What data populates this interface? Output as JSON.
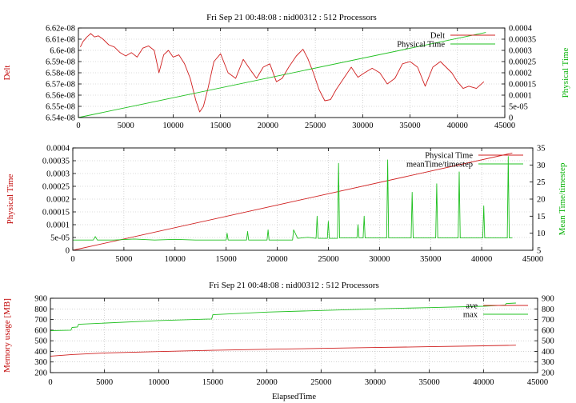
{
  "chart_data": [
    {
      "type": "line",
      "title": "Fri Sep 21 00:48:08 : nid00312 : 512 Processors",
      "ylabel": "Delt",
      "y2label": "Physical Time",
      "xlabel": "",
      "xlim": [
        0,
        45000
      ],
      "ylim": [
        6.54e-08,
        6.62e-08
      ],
      "y2lim": [
        0,
        0.0004
      ],
      "xticks": [
        "0",
        "5000",
        "10000",
        "15000",
        "20000",
        "25000",
        "30000",
        "35000",
        "40000",
        "45000"
      ],
      "yticks": [
        "6.54e-08",
        "6.55e-08",
        "6.56e-08",
        "6.57e-08",
        "6.58e-08",
        "6.59e-08",
        "6.6e-08",
        "6.61e-08",
        "6.62e-08"
      ],
      "y2ticks": [
        "0",
        "5e-05",
        "0.0001",
        "0.00015",
        "0.0002",
        "0.00025",
        "0.0003",
        "0.00035",
        "0.0004"
      ],
      "grid": true,
      "legend_position": "top-right",
      "series": [
        {
          "name": "Delt",
          "axis": "y",
          "color": "#d02020",
          "x": [
            200,
            500,
            900,
            1300,
            1700,
            2100,
            2600,
            3200,
            3800,
            4400,
            5000,
            5600,
            6200,
            6800,
            7400,
            8000,
            8500,
            9000,
            9500,
            10000,
            10600,
            11200,
            11800,
            12400,
            12800,
            13200,
            13700,
            14300,
            15000,
            15800,
            16600,
            17400,
            18200,
            18800,
            19500,
            20200,
            20900,
            21500,
            22200,
            23000,
            23700,
            24200,
            24800,
            25400,
            26000,
            26600,
            27200,
            28000,
            28800,
            29500,
            30200,
            31000,
            31800,
            32600,
            33400,
            34200,
            35000,
            35800,
            36600,
            37400,
            38200,
            38800,
            39400,
            40000,
            40600,
            41200,
            42000,
            42800
          ],
          "y": [
            6.603e-08,
            6.608e-08,
            6.612e-08,
            6.615e-08,
            6.612e-08,
            6.613e-08,
            6.61e-08,
            6.605e-08,
            6.603e-08,
            6.598e-08,
            6.595e-08,
            6.598e-08,
            6.594e-08,
            6.602e-08,
            6.604e-08,
            6.6e-08,
            6.58e-08,
            6.596e-08,
            6.6e-08,
            6.594e-08,
            6.596e-08,
            6.588e-08,
            6.575e-08,
            6.555e-08,
            6.545e-08,
            6.55e-08,
            6.567e-08,
            6.59e-08,
            6.597e-08,
            6.58e-08,
            6.575e-08,
            6.592e-08,
            6.582e-08,
            6.575e-08,
            6.585e-08,
            6.588e-08,
            6.572e-08,
            6.575e-08,
            6.585e-08,
            6.595e-08,
            6.601e-08,
            6.593e-08,
            6.58e-08,
            6.565e-08,
            6.555e-08,
            6.556e-08,
            6.565e-08,
            6.575e-08,
            6.585e-08,
            6.576e-08,
            6.58e-08,
            6.584e-08,
            6.58e-08,
            6.57e-08,
            6.575e-08,
            6.588e-08,
            6.59e-08,
            6.585e-08,
            6.568e-08,
            6.585e-08,
            6.59e-08,
            6.585e-08,
            6.58e-08,
            6.572e-08,
            6.566e-08,
            6.568e-08,
            6.566e-08,
            6.572e-08
          ]
        },
        {
          "name": "Physical Time",
          "axis": "y2",
          "color": "#20c020",
          "x": [
            0,
            43000
          ],
          "y": [
            0,
            0.00038
          ]
        }
      ]
    },
    {
      "type": "line",
      "title": "",
      "ylabel": "Physical Time",
      "y2label": "Mean Time/timestep",
      "xlabel": "",
      "xlim": [
        0,
        45000
      ],
      "ylim": [
        0,
        0.0004
      ],
      "y2lim": [
        5,
        35
      ],
      "xticks": [
        "0",
        "5000",
        "10000",
        "15000",
        "20000",
        "25000",
        "30000",
        "35000",
        "40000",
        "45000"
      ],
      "yticks": [
        "0",
        "5e-05",
        "0.0001",
        "0.00015",
        "0.0002",
        "0.00025",
        "0.0003",
        "0.00035",
        "0.0004"
      ],
      "y2ticks": [
        "5",
        "10",
        "15",
        "20",
        "25",
        "30",
        "35"
      ],
      "grid": true,
      "legend_position": "top-right",
      "series": [
        {
          "name": "Physical Time",
          "axis": "y",
          "color": "#d02020",
          "x": [
            0,
            43000
          ],
          "y": [
            0,
            0.00038
          ]
        },
        {
          "name": "meanTime/timestep",
          "axis": "y2",
          "color": "#20c020",
          "x": [
            0,
            2000,
            2200,
            2400,
            4000,
            6000,
            8000,
            10000,
            12000,
            14000,
            15000,
            15100,
            15200,
            17000,
            17100,
            17200,
            19000,
            19100,
            19200,
            21500,
            21600,
            22000,
            23000,
            23800,
            23900,
            24000,
            24900,
            25000,
            25100,
            25900,
            26000,
            26100,
            27800,
            27900,
            28000,
            28400,
            28500,
            28600,
            30700,
            30800,
            30900,
            33100,
            33200,
            33300,
            35500,
            35600,
            35700,
            37700,
            37800,
            37900,
            40100,
            40200,
            40300,
            42500,
            42600,
            42700,
            43000
          ],
          "y": [
            8,
            8,
            9,
            8,
            8,
            8.3,
            8,
            8.2,
            8,
            8,
            8,
            10,
            8,
            8,
            10.5,
            8,
            8,
            11,
            8,
            8,
            11,
            8.5,
            8.8,
            8.5,
            15,
            8.5,
            8.5,
            13.5,
            8.5,
            8.5,
            30.5,
            8.6,
            8.6,
            12.5,
            8.6,
            8.6,
            15,
            8.6,
            8.6,
            31.5,
            8.6,
            8.6,
            22,
            8.6,
            8.6,
            24.5,
            8.6,
            8.6,
            28,
            8.6,
            8.6,
            18,
            8.6,
            8.6,
            32.5,
            8.6,
            8.6
          ]
        }
      ]
    },
    {
      "type": "line",
      "title": "Fri Sep 21 00:48:08 : nid00312 : 512 Processors",
      "ylabel": "Memory usage [MB]",
      "y2label": "",
      "xlabel": "ElapsedTime",
      "xlim": [
        0,
        45000
      ],
      "ylim": [
        200,
        900
      ],
      "y2lim": [
        200,
        900
      ],
      "xticks": [
        "0",
        "5000",
        "10000",
        "15000",
        "20000",
        "25000",
        "30000",
        "35000",
        "40000",
        "45000"
      ],
      "yticks": [
        "200",
        "300",
        "400",
        "500",
        "600",
        "700",
        "800",
        "900"
      ],
      "y2ticks": [
        "200",
        "300",
        "400",
        "500",
        "600",
        "700",
        "800",
        "900"
      ],
      "grid": true,
      "legend_position": "top-right",
      "series": [
        {
          "name": "ave",
          "axis": "y",
          "color": "#d02020",
          "x": [
            0,
            2000,
            5000,
            10000,
            15000,
            20000,
            25000,
            30000,
            35000,
            40000,
            43000
          ],
          "y": [
            355,
            370,
            385,
            398,
            410,
            420,
            428,
            436,
            444,
            452,
            458
          ]
        },
        {
          "name": "max",
          "axis": "y",
          "color": "#20c020",
          "x": [
            0,
            1900,
            2000,
            2500,
            2600,
            10000,
            14900,
            15000,
            20000,
            25000,
            30000,
            35000,
            40000,
            42000,
            42100,
            43000
          ],
          "y": [
            595,
            600,
            625,
            630,
            655,
            690,
            705,
            745,
            770,
            785,
            800,
            812,
            825,
            835,
            850,
            855
          ]
        }
      ]
    }
  ]
}
